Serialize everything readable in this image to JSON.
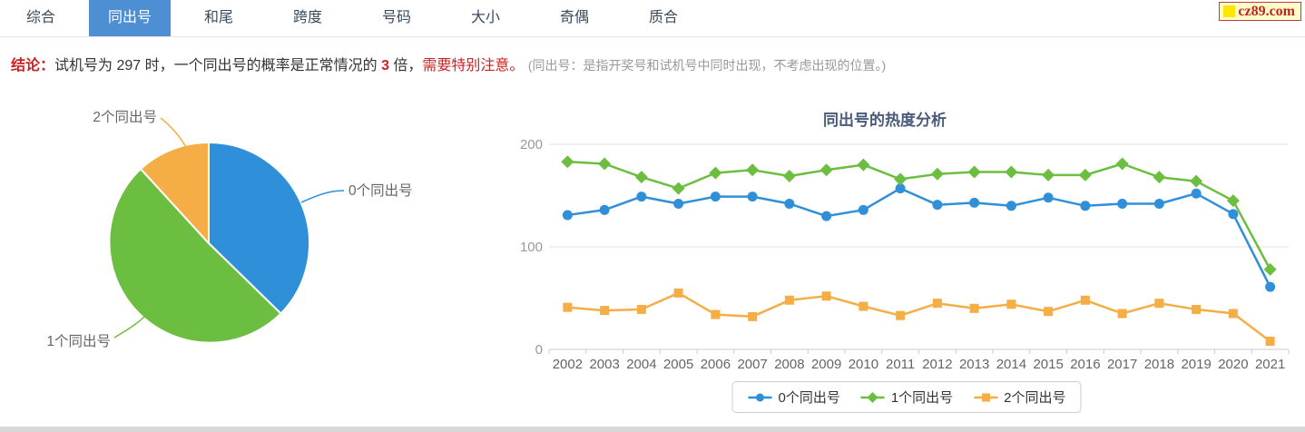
{
  "nav": {
    "active_color": "#4d8fd2",
    "tabs": [
      {
        "label": "综合",
        "active": false
      },
      {
        "label": "同出号",
        "active": true
      },
      {
        "label": "和尾",
        "active": false
      },
      {
        "label": "跨度",
        "active": false
      },
      {
        "label": "号码",
        "active": false
      },
      {
        "label": "大小",
        "active": false
      },
      {
        "label": "奇偶",
        "active": false
      },
      {
        "label": "质合",
        "active": false
      }
    ],
    "logo_text": "cz89.com"
  },
  "conclusion": {
    "prefix": "结论：",
    "part1": "试机号为 297 时，一个同出号的概率是正常情况的 ",
    "highlight_number": "3",
    "part2": " 倍，",
    "warning": "需要特别注意。",
    "note": "(同出号：是指开奖号和试机号中同时出现，不考虑出现的位置。)"
  },
  "chart_data": [
    {
      "type": "pie",
      "labels": [
        "0个同出号",
        "1个同出号",
        "2个同出号"
      ],
      "values": [
        37.3,
        50.9,
        11.8
      ],
      "colors": [
        "#2f90d9",
        "#6cbe40",
        "#f5ae45"
      ],
      "legend_position": "none",
      "label_color": "#666"
    },
    {
      "type": "line",
      "title": "同出号的热度分析",
      "title_color": "#4a5a7a",
      "categories": [
        "2002",
        "2003",
        "2004",
        "2005",
        "2006",
        "2007",
        "2008",
        "2009",
        "2010",
        "2011",
        "2012",
        "2013",
        "2014",
        "2015",
        "2016",
        "2017",
        "2018",
        "2019",
        "2020",
        "2021"
      ],
      "series": [
        {
          "name": "0个同出号",
          "color": "#2f90d9",
          "marker": "circle",
          "values": [
            131,
            136,
            149,
            142,
            149,
            149,
            142,
            130,
            136,
            157,
            141,
            143,
            140,
            148,
            140,
            142,
            142,
            152,
            132,
            61
          ]
        },
        {
          "name": "1个同出号",
          "color": "#6cbe40",
          "marker": "diamond",
          "values": [
            183,
            181,
            168,
            157,
            172,
            175,
            169,
            175,
            180,
            166,
            171,
            173,
            173,
            170,
            170,
            181,
            168,
            164,
            145,
            78
          ]
        },
        {
          "name": "2个同出号",
          "color": "#f5ae45",
          "marker": "square",
          "values": [
            41,
            38,
            39,
            55,
            34,
            32,
            48,
            52,
            42,
            33,
            45,
            40,
            44,
            37,
            48,
            35,
            45,
            39,
            35,
            8
          ]
        }
      ],
      "xlabel": "",
      "ylabel": "",
      "ylim": [
        0,
        200
      ],
      "yticks": [
        0,
        100,
        200
      ],
      "grid": true,
      "legend_position": "bottom"
    }
  ]
}
